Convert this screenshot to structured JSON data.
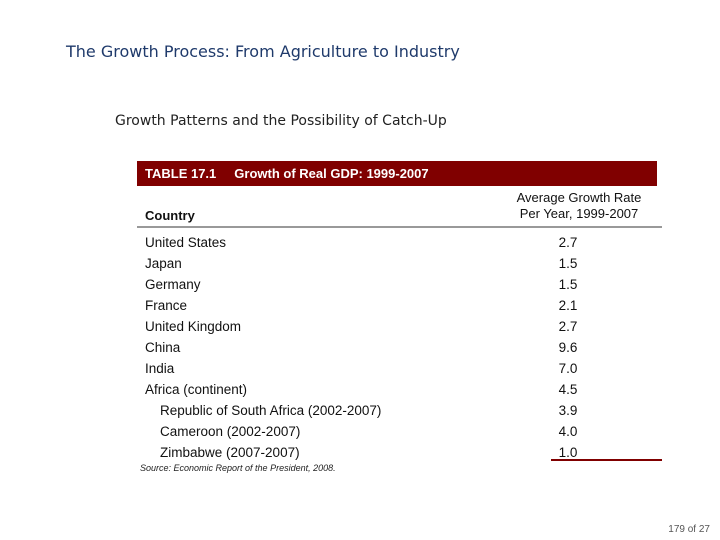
{
  "slide": {
    "title": "The Growth Process: From Agriculture to Industry",
    "subtitle": "Growth Patterns and the Possibility of Catch-Up",
    "page_number": "179 of 27"
  },
  "table": {
    "label": "TABLE 17.1",
    "caption": "Growth of Real GDP:  1999-2007",
    "col_country": "Country",
    "col_rate_line1": "Average Growth Rate",
    "col_rate_line2": "Per Year, 1999-2007",
    "rows": [
      {
        "name": "United States",
        "value": "2.7"
      },
      {
        "name": "Japan",
        "value": "1.5"
      },
      {
        "name": "Germany",
        "value": "1.5"
      },
      {
        "name": "France",
        "value": "2.1"
      },
      {
        "name": "United Kingdom",
        "value": "2.7"
      },
      {
        "name": "China",
        "value": "9.6"
      },
      {
        "name": "India",
        "value": "7.0"
      },
      {
        "name": "Africa (continent)",
        "value": "4.5"
      },
      {
        "name": "Republic of South Africa (2002-2007)",
        "value": "3.9"
      },
      {
        "name": "Cameroon (2002-2007)",
        "value": "4.0"
      },
      {
        "name": "Zimbabwe (2007-2007)",
        "value": "1.0"
      }
    ],
    "source": "Source: Economic Report of the President, 2008."
  }
}
